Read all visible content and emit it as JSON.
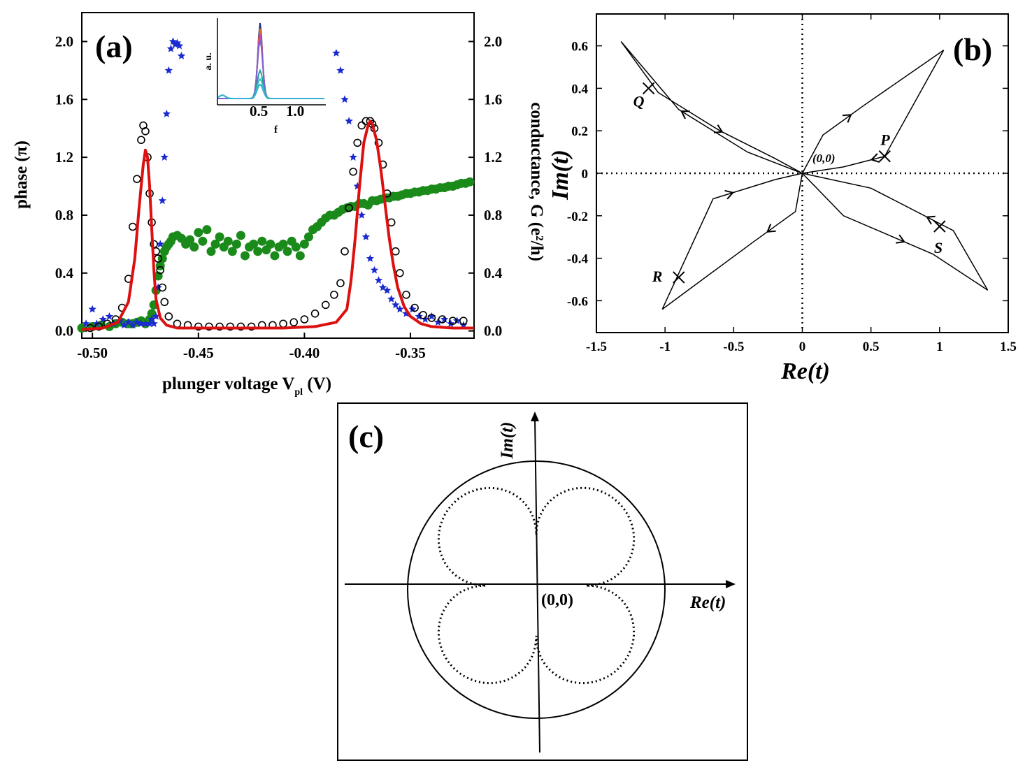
{
  "chart_data": [
    {
      "panel": "(a)",
      "type": "scatter",
      "xlabel": "plunger voltage V",
      "xlabel_sub": "pl",
      "xlabel_unit": " (V)",
      "ylabel_left": "phase (π)",
      "ylabel_right": "conductance, G  (e²/h)",
      "xlim": [
        -0.505,
        -0.32
      ],
      "ylim": [
        -0.05,
        2.2
      ],
      "x_ticks": [
        "-0.50",
        "-0.45",
        "-0.40",
        "-0.35"
      ],
      "x_tick_values": [
        -0.5,
        -0.45,
        -0.4,
        -0.35
      ],
      "y_ticks": [
        "0.0",
        "0.4",
        "0.8",
        "1.2",
        "1.6",
        "2.0"
      ],
      "y_tick_values": [
        0.0,
        0.4,
        0.8,
        1.2,
        1.6,
        2.0
      ],
      "series": [
        {
          "style": "open-circles",
          "color": "#000000",
          "x": [
            -0.501,
            -0.497,
            -0.493,
            -0.489,
            -0.486,
            -0.483,
            -0.481,
            -0.479,
            -0.477,
            -0.476,
            -0.475,
            -0.474,
            -0.473,
            -0.472,
            -0.471,
            -0.47,
            -0.469,
            -0.468,
            -0.467,
            -0.466,
            -0.464,
            -0.46,
            -0.455,
            -0.45,
            -0.445,
            -0.44,
            -0.435,
            -0.43,
            -0.425,
            -0.42,
            -0.415,
            -0.41,
            -0.405,
            -0.4,
            -0.395,
            -0.39,
            -0.386,
            -0.383,
            -0.381,
            -0.379,
            -0.377,
            -0.375,
            -0.373,
            -0.371,
            -0.369,
            -0.368,
            -0.367,
            -0.365,
            -0.363,
            -0.361,
            -0.359,
            -0.357,
            -0.355,
            -0.352,
            -0.348,
            -0.344,
            -0.34,
            -0.335,
            -0.33,
            -0.325
          ],
          "y": [
            0.02,
            0.03,
            0.05,
            0.08,
            0.16,
            0.36,
            0.72,
            1.05,
            1.32,
            1.42,
            1.38,
            1.2,
            0.95,
            0.75,
            0.6,
            0.55,
            0.5,
            0.42,
            0.3,
            0.2,
            0.1,
            0.05,
            0.04,
            0.03,
            0.03,
            0.03,
            0.03,
            0.03,
            0.03,
            0.04,
            0.04,
            0.05,
            0.06,
            0.08,
            0.12,
            0.18,
            0.25,
            0.33,
            0.55,
            0.85,
            1.1,
            1.3,
            1.42,
            1.45,
            1.45,
            1.43,
            1.4,
            1.3,
            1.15,
            0.95,
            0.75,
            0.55,
            0.4,
            0.25,
            0.16,
            0.11,
            0.09,
            0.08,
            0.07,
            0.07
          ]
        },
        {
          "style": "red-line",
          "color": "#dd1010",
          "x": [
            -0.505,
            -0.495,
            -0.488,
            -0.483,
            -0.48,
            -0.478,
            -0.476,
            -0.475,
            -0.474,
            -0.473,
            -0.472,
            -0.471,
            -0.47,
            -0.468,
            -0.465,
            -0.46,
            -0.45,
            -0.43,
            -0.41,
            -0.395,
            -0.385,
            -0.38,
            -0.378,
            -0.376,
            -0.374,
            -0.372,
            -0.37,
            -0.369,
            -0.368,
            -0.366,
            -0.364,
            -0.362,
            -0.36,
            -0.358,
            -0.356,
            -0.353,
            -0.35,
            -0.345,
            -0.34,
            -0.33,
            -0.32
          ],
          "y": [
            0.01,
            0.02,
            0.06,
            0.2,
            0.5,
            0.85,
            1.15,
            1.25,
            1.2,
            1.0,
            0.7,
            0.42,
            0.22,
            0.09,
            0.04,
            0.02,
            0.02,
            0.02,
            0.02,
            0.03,
            0.06,
            0.15,
            0.35,
            0.65,
            1.0,
            1.3,
            1.42,
            1.45,
            1.43,
            1.32,
            1.12,
            0.88,
            0.64,
            0.45,
            0.3,
            0.17,
            0.1,
            0.05,
            0.03,
            0.02,
            0.02
          ]
        },
        {
          "style": "blue-stars",
          "color": "#1a2ad0",
          "x": [
            -0.503,
            -0.5,
            -0.498,
            -0.495,
            -0.492,
            -0.49,
            -0.487,
            -0.485,
            -0.483,
            -0.481,
            -0.479,
            -0.477,
            -0.475,
            -0.473,
            -0.472,
            -0.471,
            -0.47,
            -0.469,
            -0.468,
            -0.467,
            -0.466,
            -0.465,
            -0.464,
            -0.463,
            -0.462,
            -0.461,
            -0.46,
            -0.459,
            -0.458,
            -0.385,
            -0.383,
            -0.381,
            -0.379,
            -0.377,
            -0.375,
            -0.373,
            -0.371,
            -0.369,
            -0.367,
            -0.365,
            -0.363,
            -0.361,
            -0.359,
            -0.357,
            -0.355,
            -0.352,
            -0.349,
            -0.346,
            -0.343,
            -0.34,
            -0.337,
            -0.334,
            -0.331,
            -0.328,
            -0.325
          ],
          "y": [
            0.05,
            0.15,
            0.05,
            0.08,
            0.1,
            0.05,
            0.07,
            0.04,
            0.06,
            0.04,
            0.06,
            0.05,
            0.05,
            0.05,
            0.08,
            0.05,
            0.1,
            0.3,
            0.6,
            0.9,
            1.2,
            1.5,
            1.8,
            1.95,
            2.0,
            1.98,
            1.99,
            1.97,
            1.9,
            1.92,
            1.8,
            1.6,
            1.45,
            1.2,
            1.0,
            0.8,
            0.65,
            0.5,
            0.42,
            0.35,
            0.3,
            0.28,
            0.22,
            0.18,
            0.15,
            0.12,
            0.15,
            0.1,
            0.08,
            0.1,
            0.06,
            0.08,
            0.05,
            0.07,
            0.04
          ]
        },
        {
          "style": "green-dots",
          "color": "#1a8a1a",
          "x": [
            -0.505,
            -0.5,
            -0.496,
            -0.492,
            -0.489,
            -0.486,
            -0.483,
            -0.481,
            -0.479,
            -0.477,
            -0.475,
            -0.473,
            -0.472,
            -0.471,
            -0.47,
            -0.469,
            -0.468,
            -0.467,
            -0.466,
            -0.465,
            -0.464,
            -0.463,
            -0.462,
            -0.46,
            -0.458,
            -0.456,
            -0.454,
            -0.452,
            -0.45,
            -0.448,
            -0.446,
            -0.444,
            -0.442,
            -0.44,
            -0.438,
            -0.436,
            -0.434,
            -0.432,
            -0.43,
            -0.428,
            -0.426,
            -0.424,
            -0.422,
            -0.42,
            -0.418,
            -0.416,
            -0.414,
            -0.412,
            -0.41,
            -0.408,
            -0.406,
            -0.404,
            -0.402,
            -0.4,
            -0.398,
            -0.396,
            -0.394,
            -0.392,
            -0.39,
            -0.388,
            -0.386,
            -0.384,
            -0.382,
            -0.38,
            -0.378,
            -0.376,
            -0.374,
            -0.372,
            -0.37,
            -0.368,
            -0.366,
            -0.364,
            -0.362,
            -0.36,
            -0.358,
            -0.356,
            -0.354,
            -0.352,
            -0.35,
            -0.348,
            -0.346,
            -0.344,
            -0.342,
            -0.34,
            -0.338,
            -0.336,
            -0.334,
            -0.332,
            -0.33,
            -0.328,
            -0.326,
            -0.324,
            -0.322
          ],
          "y": [
            0.02,
            0.03,
            0.04,
            0.03,
            0.05,
            0.06,
            0.05,
            0.05,
            0.06,
            0.07,
            0.05,
            0.08,
            0.12,
            0.18,
            0.28,
            0.38,
            0.45,
            0.5,
            0.55,
            0.58,
            0.6,
            0.62,
            0.65,
            0.66,
            0.64,
            0.6,
            0.63,
            0.58,
            0.68,
            0.62,
            0.7,
            0.55,
            0.6,
            0.65,
            0.58,
            0.62,
            0.55,
            0.6,
            0.66,
            0.52,
            0.58,
            0.6,
            0.55,
            0.62,
            0.56,
            0.6,
            0.52,
            0.58,
            0.6,
            0.55,
            0.62,
            0.58,
            0.52,
            0.6,
            0.65,
            0.7,
            0.72,
            0.75,
            0.78,
            0.8,
            0.8,
            0.82,
            0.84,
            0.85,
            0.86,
            0.86,
            0.88,
            0.88,
            0.87,
            0.9,
            0.9,
            0.91,
            0.92,
            0.92,
            0.93,
            0.93,
            0.94,
            0.95,
            0.95,
            0.96,
            0.96,
            0.97,
            0.97,
            0.98,
            0.98,
            0.99,
            0.99,
            1.0,
            1.0,
            1.01,
            1.02,
            1.02,
            1.03
          ]
        }
      ],
      "inset": {
        "xlabel": "f",
        "ylabel": "a. u.",
        "x_ticks": [
          "0.5",
          "1.0"
        ],
        "peak_colors": [
          "#203080",
          "#e07020",
          "#c040c0",
          "#8060d0",
          "#20a0a0",
          "#40c0c0",
          "#30b0d0"
        ]
      }
    },
    {
      "panel": "(b)",
      "type": "line",
      "xlabel": "Re(t)",
      "ylabel": "Im(t)",
      "xlim": [
        -1.5,
        1.5
      ],
      "ylim": [
        -0.75,
        0.75
      ],
      "x_ticks": [
        "-1.5",
        "-1",
        "-0.5",
        "0",
        "0.5",
        "1",
        "1.5"
      ],
      "x_tick_values": [
        -1.5,
        -1,
        -0.5,
        0,
        0.5,
        1,
        1.5
      ],
      "y_ticks": [
        "-0.6",
        "-0.4",
        "-0.2",
        "0",
        "0.2",
        "0.4",
        "0.6"
      ],
      "y_tick_values": [
        -0.6,
        -0.4,
        -0.2,
        0,
        0.2,
        0.4,
        0.6
      ],
      "series": [
        {
          "x": [
            0,
            -0.4,
            -0.9,
            -1.32,
            -1.05,
            -0.6,
            -0.2,
            0
          ],
          "y": [
            0,
            0.1,
            0.3,
            0.62,
            0.38,
            0.2,
            0.07,
            0
          ]
        },
        {
          "x": [
            0,
            0.15,
            0.45,
            1.03,
            0.6,
            0.3,
            0
          ],
          "y": [
            0,
            0.18,
            0.32,
            0.58,
            0.08,
            0.03,
            0
          ]
        },
        {
          "x": [
            0,
            -0.05,
            -0.35,
            -1.02,
            -0.65,
            -0.2,
            0
          ],
          "y": [
            0,
            -0.18,
            -0.32,
            -0.64,
            -0.12,
            -0.03,
            0
          ]
        },
        {
          "x": [
            0,
            0.3,
            0.95,
            1.35,
            1.1,
            0.5,
            0
          ],
          "y": [
            0,
            -0.2,
            -0.38,
            -0.55,
            -0.27,
            -0.07,
            0
          ]
        }
      ],
      "markers": [
        {
          "label": "Q",
          "x": -1.12,
          "y": 0.4
        },
        {
          "label": "P",
          "x": 0.6,
          "y": 0.08
        },
        {
          "label": "R",
          "x": -0.9,
          "y": -0.49
        },
        {
          "label": "S",
          "x": 1.0,
          "y": -0.25
        }
      ],
      "origin_label": "(0,0)"
    },
    {
      "panel": "(c)",
      "type": "line",
      "xlabel": "Re(t)",
      "ylabel": "Im(t)",
      "origin_label": "(0,0)",
      "unit_circle_radius": 1,
      "dotted_curve": "four-lobed loop inside circle"
    }
  ]
}
